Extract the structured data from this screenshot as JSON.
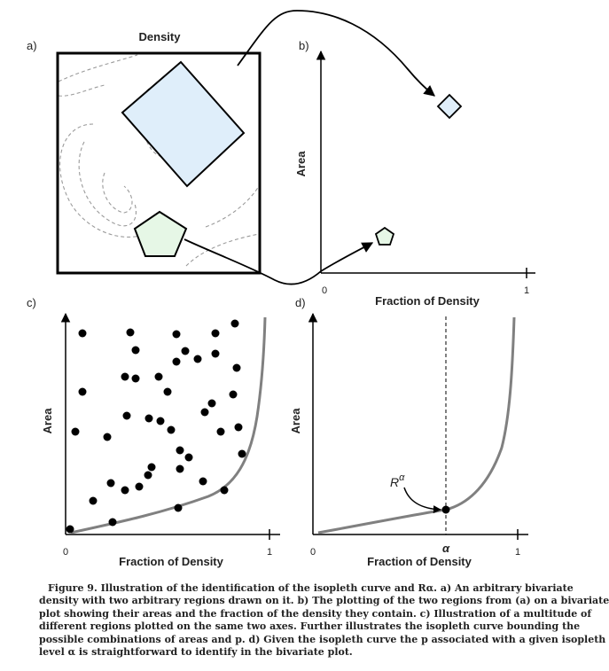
{
  "panels": {
    "a": {
      "label": "a)",
      "title": "Density"
    },
    "b": {
      "label": "b)",
      "ylabel": "Area",
      "xlabel": "Fraction of Density",
      "x0": "0",
      "x1": "1"
    },
    "c": {
      "label": "c)",
      "ylabel": "Area",
      "xlabel": "Fraction of Density",
      "x0": "0",
      "x1": "1"
    },
    "d": {
      "label": "d)",
      "ylabel": "Area",
      "xlabel": "Fraction of Density",
      "x0": "0",
      "x1": "1",
      "marker_label": "R",
      "marker_sup": "α",
      "alpha_label": "α"
    }
  },
  "caption": {
    "lines": [
      "Figure 9. Illustration of the identification of the isopleth curve and Rα. a) An arbitrary bivariate",
      "density with two arbitrary regions drawn on it. b) The plotting of the two regions from (a) on a bivariate",
      "plot showing their areas and the fraction of the density they contain. c) Illustration of a multitude of",
      "different regions plotted on the same two axes. Further illustrates the isopleth curve bounding the",
      "possible combinations of areas and p. d) Given the isopleth curve the p associated with a given isopleth",
      "level α is straightforward to identify in the bivariate plot."
    ]
  },
  "colors": {
    "square_fill": "#dfeefa",
    "pentagon_fill": "#e6f7e6",
    "curve": "#808080",
    "contour": "#9a9a9a"
  }
}
